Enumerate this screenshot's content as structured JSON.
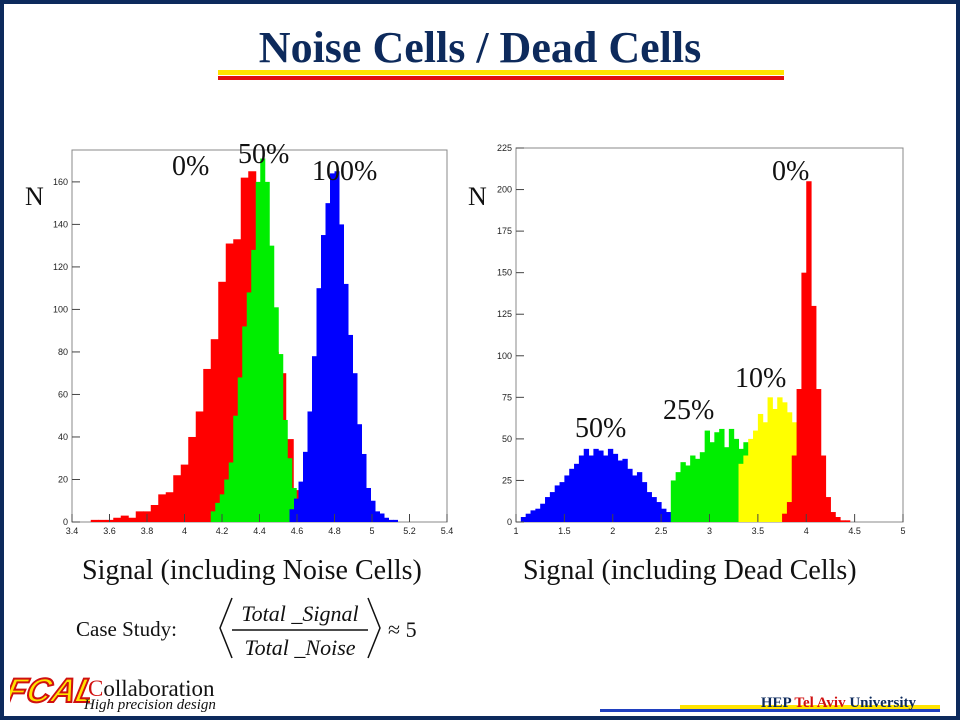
{
  "slide": {
    "title": "Noise Cells / Dead Cells"
  },
  "chart_data": [
    {
      "type": "histogram",
      "caption": "Signal (including Noise Cells)",
      "ylabel": "N",
      "xlim": [
        3.4,
        5.4
      ],
      "ylim": [
        0,
        175
      ],
      "xticks": [
        "3.4",
        "3.6",
        "3.8",
        "4",
        "4.2",
        "4.4",
        "4.6",
        "4.8",
        "5",
        "5.2",
        "5.4"
      ],
      "xtick_values": [
        3.4,
        3.6,
        3.8,
        4,
        4.2,
        4.4,
        4.6,
        4.8,
        5,
        5.2,
        5.4
      ],
      "yticks": [
        "0",
        "20",
        "40",
        "60",
        "80",
        "100",
        "120",
        "140",
        "160"
      ],
      "ytick_values": [
        0,
        20,
        40,
        60,
        80,
        100,
        120,
        140,
        160
      ],
      "series": [
        {
          "name": "0%",
          "color": "#ff0000",
          "x_start": 3.5,
          "bin_width": 0.04,
          "values": [
            1,
            1,
            1,
            2,
            3,
            2,
            5,
            5,
            8,
            13,
            14,
            22,
            27,
            40,
            52,
            72,
            86,
            113,
            131,
            133,
            162,
            165,
            130,
            102,
            80,
            70,
            39,
            15,
            6,
            1,
            1
          ]
        },
        {
          "name": "50%",
          "color": "#00ee00",
          "x_start": 4.14,
          "bin_width": 0.024,
          "values": [
            5,
            9,
            13,
            20,
            28,
            50,
            68,
            92,
            108,
            128,
            160,
            171,
            160,
            130,
            101,
            79,
            48,
            30,
            16,
            8,
            4,
            2,
            1
          ]
        },
        {
          "name": "100%",
          "color": "#0000ff",
          "x_start": 4.56,
          "bin_width": 0.024,
          "values": [
            6,
            11,
            19,
            33,
            52,
            78,
            110,
            135,
            150,
            164,
            165,
            140,
            112,
            88,
            70,
            46,
            32,
            16,
            10,
            5,
            4,
            2,
            1,
            1
          ]
        }
      ],
      "annotations": [
        {
          "text": "0%",
          "color": "#111111"
        },
        {
          "text": "50%",
          "color": "#111111"
        },
        {
          "text": "100%",
          "color": "#111111"
        }
      ]
    },
    {
      "type": "histogram",
      "caption": "Signal (including Dead Cells)",
      "ylabel": "N",
      "xlim": [
        1,
        5
      ],
      "ylim": [
        0,
        225
      ],
      "xticks": [
        "1",
        "1.5",
        "2",
        "2.5",
        "3",
        "3.5",
        "4",
        "4.5",
        "5"
      ],
      "xtick_values": [
        1,
        1.5,
        2,
        2.5,
        3,
        3.5,
        4,
        4.5,
        5
      ],
      "yticks": [
        "0",
        "25",
        "50",
        "75",
        "100",
        "125",
        "150",
        "175",
        "200",
        "225"
      ],
      "ytick_values": [
        0,
        25,
        50,
        75,
        100,
        125,
        150,
        175,
        200,
        225
      ],
      "series": [
        {
          "name": "50%",
          "color": "#0000ff",
          "x_start": 1.05,
          "bin_width": 0.05,
          "values": [
            3,
            5,
            7,
            8,
            11,
            15,
            18,
            22,
            24,
            28,
            32,
            35,
            40,
            44,
            40,
            44,
            43,
            40,
            44,
            41,
            37,
            38,
            32,
            28,
            30,
            24,
            18,
            15,
            12,
            8,
            6,
            4,
            3,
            2
          ]
        },
        {
          "name": "25%",
          "color": "#00ee00",
          "x_start": 2.6,
          "bin_width": 0.05,
          "values": [
            25,
            30,
            36,
            34,
            40,
            38,
            42,
            55,
            48,
            54,
            56,
            45,
            56,
            50,
            44,
            48,
            40,
            28,
            22,
            16,
            8,
            4,
            2
          ]
        },
        {
          "name": "10%",
          "color": "#ffff00",
          "x_start": 3.3,
          "bin_width": 0.05,
          "values": [
            35,
            40,
            50,
            55,
            65,
            60,
            75,
            68,
            75,
            72,
            66,
            60,
            45,
            30,
            18,
            8,
            3,
            1
          ]
        },
        {
          "name": "0%",
          "color": "#ff0000",
          "x_start": 3.75,
          "bin_width": 0.05,
          "values": [
            5,
            12,
            40,
            80,
            150,
            205,
            130,
            80,
            40,
            15,
            6,
            3,
            1,
            1
          ]
        }
      ],
      "annotations": [
        {
          "text": "50%",
          "color": "#111111"
        },
        {
          "text": "25%",
          "color": "#111111"
        },
        {
          "text": "10%",
          "color": "#111111"
        },
        {
          "text": "0%",
          "color": "#111111"
        }
      ]
    }
  ],
  "case_study": {
    "label": "Case Study:",
    "numerator": "Total _Signal",
    "denominator": "Total _Noise",
    "approx": "≈ 5"
  },
  "footer": {
    "logo_text": "FCAL",
    "collab_initial": "C",
    "collab_rest": "ollaboration",
    "tagline": "High precision design",
    "univ_pre": "HEP ",
    "univ_mid": "Tel Aviv",
    "univ_post": " University"
  },
  "colors": {
    "navy": "#0d2a5c",
    "accent_red": "#e01010",
    "accent_yellow": "#ffe400"
  }
}
